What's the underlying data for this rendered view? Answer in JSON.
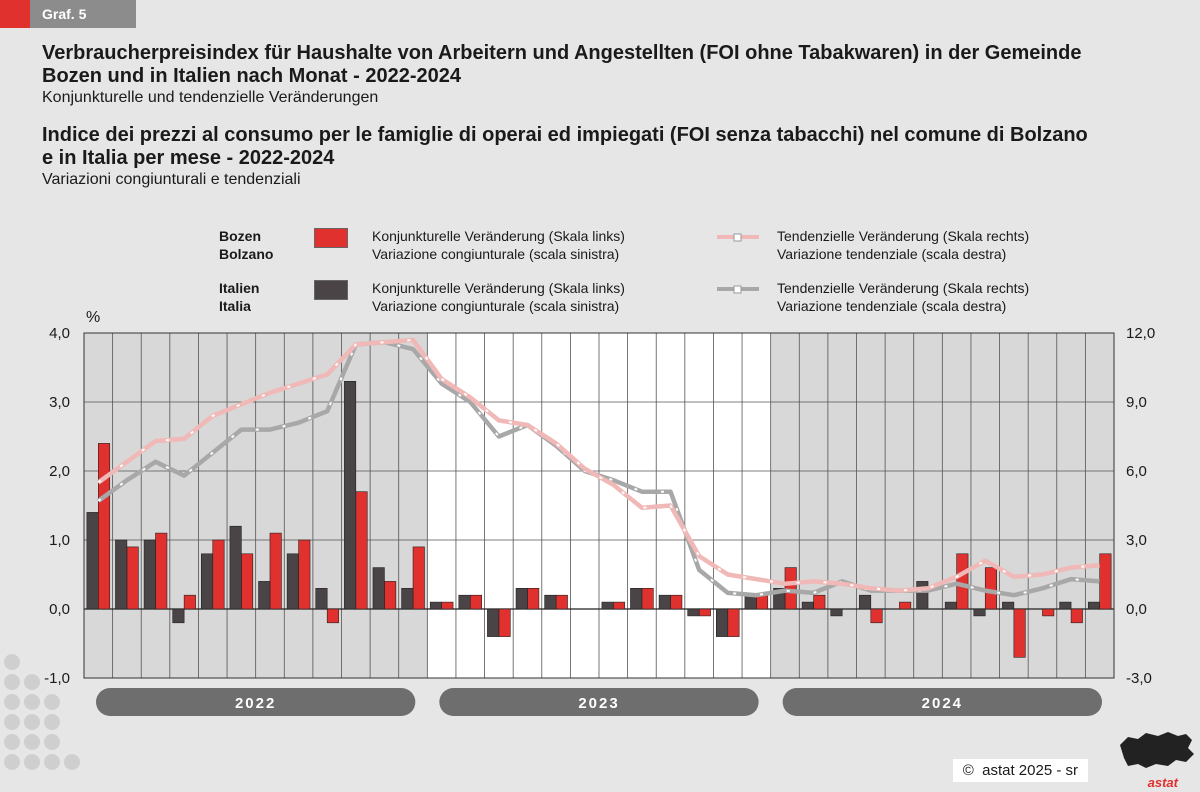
{
  "header": {
    "tag": "Graf. 5"
  },
  "titles": {
    "de_title_line1": "Verbraucherpreisindex für Haushalte von Arbeitern und Angestellten (FOI ohne Tabakwaren) in der Gemeinde",
    "de_title_line2": "Bozen und in Italien nach Monat - 2022-2024",
    "de_subtitle": "Konjunkturelle und tendenzielle Veränderungen",
    "it_title_line1": "Indice dei prezzi al consumo per le famiglie di operai ed impiegati (FOI senza tabacchi) nel comune di Bolzano",
    "it_title_line2": "e in Italia per mese - 2022-2024",
    "it_subtitle": "Variazioni congiunturali e tendenziali"
  },
  "legend": {
    "bozen_de": "Bozen",
    "bozen_it": "Bolzano",
    "italien_de": "Italien",
    "italien_it": "Italia",
    "bar_de": "Konjunkturelle Veränderung (Skala links)",
    "bar_it": "Variazione congiunturale (scala sinistra)",
    "line_de": "Tendenzielle Veränderung (Skala rechts)",
    "line_it": "Variazione tendenziale (scala destra)"
  },
  "colors": {
    "bozen_bar": "#e0312f",
    "italia_bar": "#4a4446",
    "bozen_line": "#f0b8b6",
    "italia_line": "#a8a8a8",
    "year_band": "#6e6e6e"
  },
  "chart_data": {
    "type": "bar",
    "ylabel": "%",
    "ylim": [
      -1.0,
      4.0
    ],
    "y2lim": [
      -3.0,
      12.0
    ],
    "y_ticks": [
      "-1,0",
      "0,0",
      "1,0",
      "2,0",
      "3,0",
      "4,0"
    ],
    "y2_ticks": [
      "-3,0",
      "0,0",
      "3,0",
      "6,0",
      "9,0",
      "12,0"
    ],
    "years": [
      "2022",
      "2023",
      "2024"
    ],
    "months_per_year": 12,
    "series": [
      {
        "name": "Bozen/Bolzano – Konjunkturelle Veränderung",
        "axis": "left",
        "kind": "bar",
        "values": [
          2.4,
          0.9,
          1.1,
          0.2,
          1.0,
          0.8,
          1.1,
          1.0,
          -0.2,
          1.7,
          0.4,
          0.9,
          0.1,
          0.2,
          -0.4,
          0.3,
          0.2,
          0.0,
          0.1,
          0.3,
          0.2,
          -0.1,
          -0.4,
          0.2,
          0.6,
          0.2,
          0.0,
          -0.2,
          0.1,
          0.0,
          0.8,
          0.6,
          -0.7,
          -0.1,
          -0.2,
          0.8
        ]
      },
      {
        "name": "Italien/Italia – Konjunkturelle Veränderung",
        "axis": "left",
        "kind": "bar",
        "values": [
          1.4,
          1.0,
          1.0,
          -0.2,
          0.8,
          1.2,
          0.4,
          0.8,
          0.3,
          3.3,
          0.6,
          0.3,
          0.1,
          0.2,
          -0.4,
          0.3,
          0.2,
          0.0,
          0.1,
          0.3,
          0.2,
          -0.1,
          -0.4,
          0.2,
          0.3,
          0.1,
          -0.1,
          0.2,
          0.0,
          0.4,
          0.1,
          -0.1,
          0.1,
          0.0,
          0.1,
          0.1
        ]
      },
      {
        "name": "Bozen/Bolzano – Tendenzielle Veränderung",
        "axis": "right",
        "kind": "line",
        "values": [
          5.5,
          6.4,
          7.3,
          7.4,
          8.4,
          8.9,
          9.4,
          9.8,
          10.2,
          11.5,
          11.6,
          11.7,
          10.0,
          9.2,
          8.2,
          8.0,
          7.2,
          6.1,
          5.4,
          4.4,
          4.5,
          2.3,
          1.5,
          1.3,
          1.1,
          1.2,
          1.1,
          0.9,
          0.8,
          0.9,
          1.4,
          2.1,
          1.4,
          1.5,
          1.8,
          1.9
        ]
      },
      {
        "name": "Italien/Italia – Tendenzielle Veränderung",
        "axis": "right",
        "kind": "line",
        "values": [
          4.7,
          5.6,
          6.4,
          5.8,
          6.8,
          7.8,
          7.8,
          8.1,
          8.6,
          11.5,
          11.6,
          11.3,
          9.8,
          9.0,
          7.5,
          8.0,
          7.1,
          6.0,
          5.6,
          5.1,
          5.1,
          1.7,
          0.7,
          0.6,
          0.8,
          0.7,
          1.2,
          0.8,
          0.8,
          0.8,
          1.1,
          0.8,
          0.6,
          0.9,
          1.3,
          1.2
        ]
      }
    ]
  },
  "footer": {
    "copyright_symbol": "©",
    "text": "astat 2025 - sr",
    "logo": "astat"
  }
}
